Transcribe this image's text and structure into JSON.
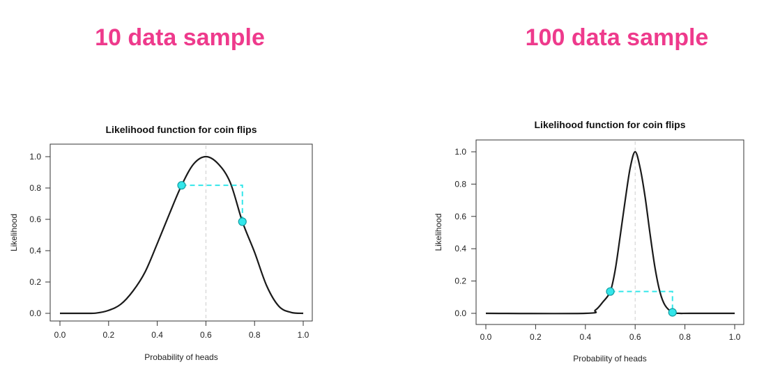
{
  "headlines": {
    "left": "10 data sample",
    "right": "100 data sample",
    "color": "#ee3a8c"
  },
  "colors": {
    "curve": "#1a1a1a",
    "marker": "#33e6ea",
    "marker_stroke": "#139ea2",
    "dashed": "#33e6ea",
    "mode_line": "#cccccc",
    "axis": "#333333"
  },
  "chart_data": [
    {
      "type": "line",
      "title": "Likelihood function for coin flips",
      "xlabel": "Probability of heads",
      "ylabel": "Likelihood",
      "xlim": [
        0,
        1
      ],
      "ylim": [
        0,
        1
      ],
      "xticks": [
        "0.0",
        "0.2",
        "0.4",
        "0.6",
        "0.8",
        "1.0"
      ],
      "yticks": [
        "0.0",
        "0.2",
        "0.4",
        "0.6",
        "0.8",
        "1.0"
      ],
      "grid": false,
      "series": [
        {
          "x": [
            0.0,
            0.05,
            0.1,
            0.15,
            0.2,
            0.25,
            0.3,
            0.35,
            0.4,
            0.45,
            0.5,
            0.55,
            0.6,
            0.65,
            0.7,
            0.75,
            0.8,
            0.85,
            0.9,
            0.95,
            1.0
          ],
          "values": [
            0.0,
            0.0,
            0.0,
            0.002,
            0.019,
            0.058,
            0.142,
            0.264,
            0.445,
            0.635,
            0.817,
            0.954,
            1.0,
            0.955,
            0.835,
            0.585,
            0.39,
            0.175,
            0.045,
            0.006,
            0.0
          ]
        }
      ],
      "points": [
        {
          "x": 0.5,
          "y": 0.817
        },
        {
          "x": 0.75,
          "y": 0.585
        }
      ],
      "mode": 0.6
    },
    {
      "type": "line",
      "title": "Likelihood function for coin flips",
      "xlabel": "Probability of heads",
      "ylabel": "Likelihood",
      "xlim": [
        0,
        1
      ],
      "ylim": [
        0,
        1
      ],
      "xticks": [
        "0.0",
        "0.2",
        "0.4",
        "0.6",
        "0.8",
        "1.0"
      ],
      "yticks": [
        "0.0",
        "0.2",
        "0.4",
        "0.6",
        "0.8",
        "1.0"
      ],
      "grid": false,
      "series": [
        {
          "x": [
            0.0,
            0.4,
            0.44,
            0.47,
            0.5,
            0.52,
            0.54,
            0.56,
            0.58,
            0.6,
            0.62,
            0.64,
            0.66,
            0.68,
            0.7,
            0.72,
            0.75,
            0.78,
            0.82,
            1.0
          ],
          "values": [
            0.0,
            0.0,
            0.02,
            0.07,
            0.135,
            0.27,
            0.48,
            0.7,
            0.9,
            1.0,
            0.9,
            0.72,
            0.49,
            0.28,
            0.13,
            0.05,
            0.006,
            0.0,
            0.0,
            0.0
          ]
        }
      ],
      "points": [
        {
          "x": 0.5,
          "y": 0.135
        },
        {
          "x": 0.75,
          "y": 0.006
        }
      ],
      "mode": 0.6
    }
  ]
}
